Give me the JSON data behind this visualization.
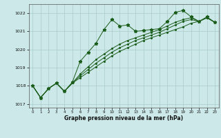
{
  "xlabel": "Graphe pression niveau de la mer (hPa)",
  "ylim": [
    1016.8,
    1022.5
  ],
  "xlim": [
    -0.5,
    23.5
  ],
  "yticks": [
    1017,
    1018,
    1019,
    1020,
    1021,
    1022
  ],
  "xticks": [
    0,
    1,
    2,
    3,
    4,
    5,
    6,
    7,
    8,
    9,
    10,
    11,
    12,
    13,
    14,
    15,
    16,
    17,
    18,
    19,
    20,
    21,
    22,
    23
  ],
  "bg_color": "#cce8e8",
  "grid_color": "#aacccc",
  "line_color": "#1a5c1a",
  "series_zigzag": [
    1018.0,
    1017.35,
    1017.85,
    1018.15,
    1017.7,
    1018.2,
    1019.35,
    1019.85,
    1020.35,
    1021.1,
    1021.65,
    1021.3,
    1021.35,
    1021.0,
    1021.05,
    1021.1,
    1021.15,
    1021.55,
    1022.05,
    1022.15,
    1021.8,
    1021.55,
    1021.8,
    1021.5
  ],
  "series_smooth1": [
    1018.0,
    1017.35,
    1017.85,
    1018.15,
    1017.7,
    1018.15,
    1018.45,
    1018.75,
    1019.05,
    1019.35,
    1019.65,
    1019.9,
    1020.1,
    1020.3,
    1020.5,
    1020.65,
    1020.8,
    1020.95,
    1021.1,
    1021.25,
    1021.45,
    1021.55,
    1021.75,
    1021.5
  ],
  "series_smooth2": [
    1018.0,
    1017.35,
    1017.85,
    1018.15,
    1017.7,
    1018.15,
    1018.55,
    1018.9,
    1019.25,
    1019.55,
    1019.85,
    1020.1,
    1020.3,
    1020.5,
    1020.65,
    1020.8,
    1020.95,
    1021.15,
    1021.35,
    1021.55,
    1021.65,
    1021.55,
    1021.75,
    1021.5
  ],
  "series_smooth3": [
    1018.0,
    1017.35,
    1017.85,
    1018.15,
    1017.7,
    1018.15,
    1018.65,
    1019.05,
    1019.45,
    1019.75,
    1020.05,
    1020.3,
    1020.5,
    1020.65,
    1020.8,
    1020.95,
    1021.1,
    1021.3,
    1021.5,
    1021.65,
    1021.75,
    1021.55,
    1021.75,
    1021.5
  ]
}
